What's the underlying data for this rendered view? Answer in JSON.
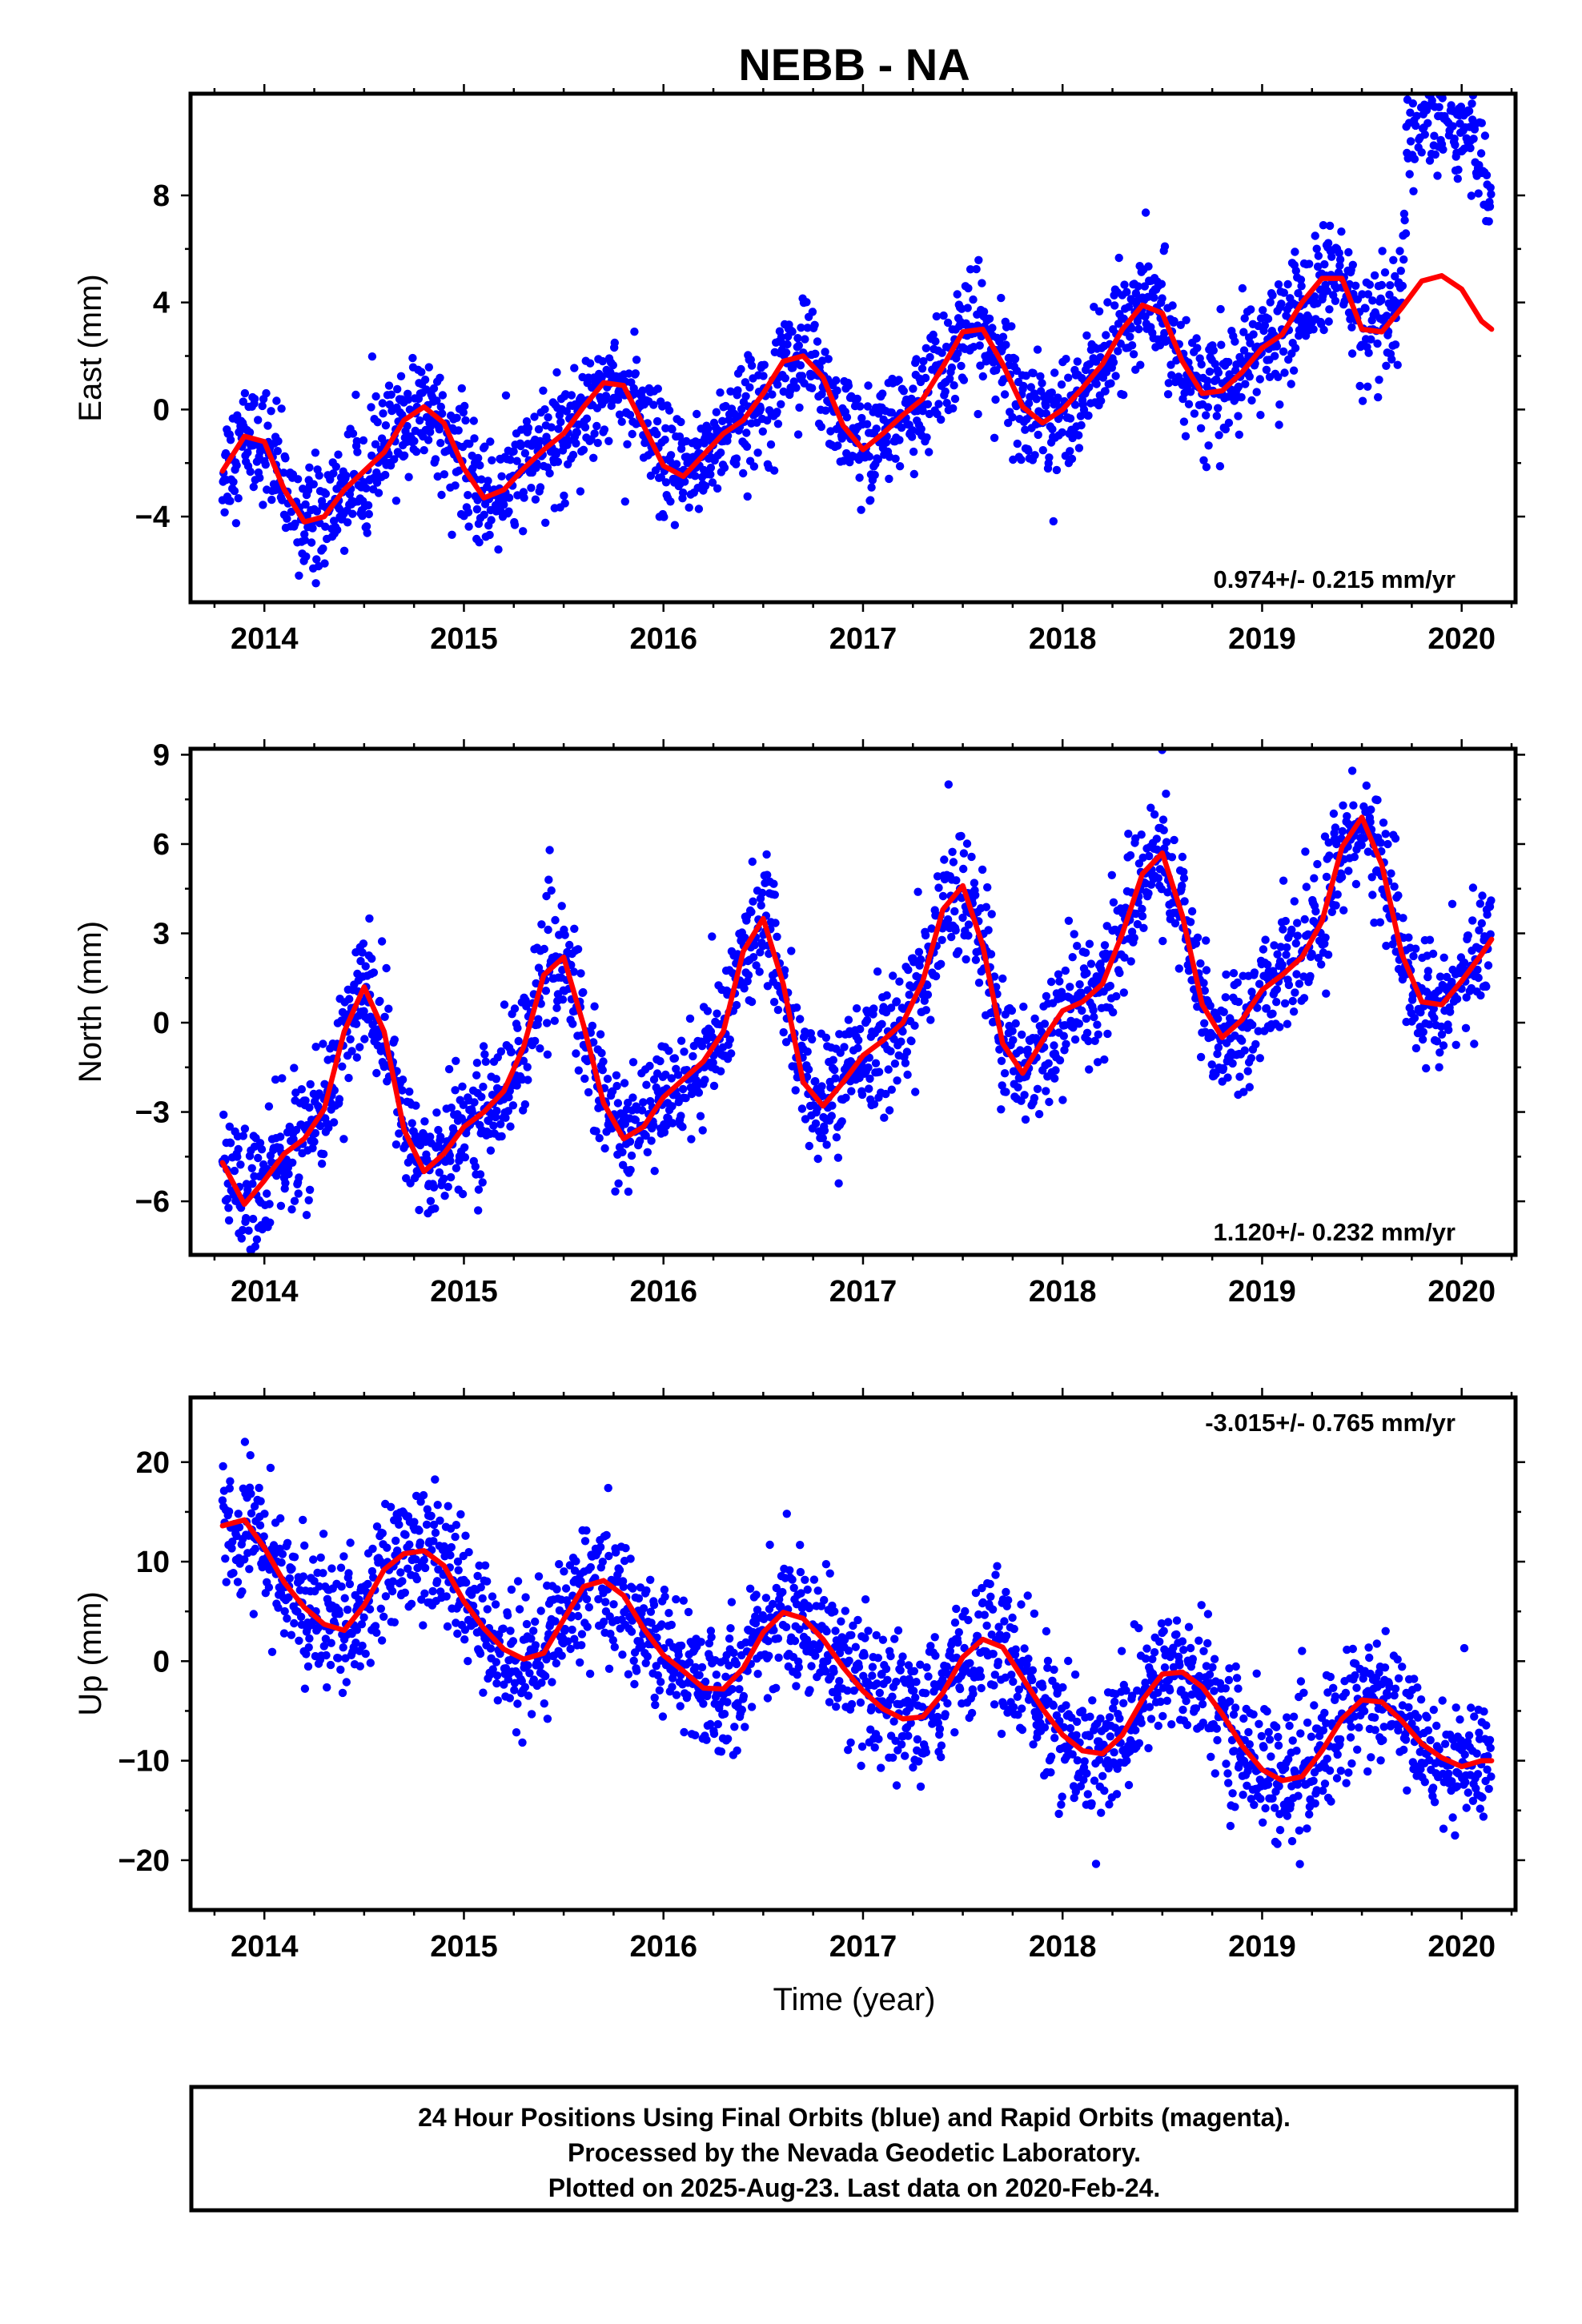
{
  "chart_data": {
    "type": "scatter",
    "title": "NEBB - NA",
    "xlabel": "Time (year)",
    "x_ticks": [
      "2014",
      "2015",
      "2016",
      "2017",
      "2018",
      "2019",
      "2020"
    ],
    "xlim": [
      2013.63,
      2020.27
    ],
    "point_color": "#0000ff",
    "model_color": "#ff0000",
    "panels": [
      {
        "name": "East",
        "ylabel": "East (mm)",
        "ylim": [
          -7.2,
          11.8
        ],
        "yticks": [
          -4,
          0,
          4,
          8
        ],
        "rate": "0.974+/- 0.215 mm/yr",
        "rate_position": "bottom-right",
        "model": {
          "x": [
            2013.79,
            2013.9,
            2014.0,
            2014.1,
            2014.2,
            2014.3,
            2014.4,
            2014.5,
            2014.6,
            2014.7,
            2014.8,
            2014.9,
            2015.0,
            2015.1,
            2015.2,
            2015.3,
            2015.4,
            2015.5,
            2015.6,
            2015.7,
            2015.8,
            2015.9,
            2016.0,
            2016.1,
            2016.2,
            2016.3,
            2016.4,
            2016.5,
            2016.6,
            2016.7,
            2016.8,
            2016.9,
            2017.0,
            2017.1,
            2017.2,
            2017.3,
            2017.4,
            2017.5,
            2017.6,
            2017.7,
            2017.8,
            2017.9,
            2018.0,
            2018.1,
            2018.2,
            2018.3,
            2018.4,
            2018.5,
            2018.6,
            2018.7,
            2018.8,
            2018.9,
            2019.0,
            2019.1,
            2019.2,
            2019.3,
            2019.4,
            2019.5,
            2019.6,
            2019.7,
            2019.8,
            2019.9,
            2020.0,
            2020.1,
            2020.15
          ],
          "y": [
            -2.3,
            -1.0,
            -1.2,
            -3.0,
            -4.2,
            -4.0,
            -3.0,
            -2.3,
            -1.6,
            -0.4,
            0.1,
            -0.5,
            -2.2,
            -3.3,
            -3.0,
            -2.2,
            -1.5,
            -0.9,
            0.1,
            1.0,
            0.9,
            -0.6,
            -2.1,
            -2.5,
            -1.7,
            -0.9,
            -0.4,
            0.6,
            1.8,
            2.0,
            1.2,
            -0.6,
            -1.5,
            -0.9,
            -0.2,
            0.4,
            1.6,
            2.9,
            3.0,
            1.7,
            0.1,
            -0.5,
            0.0,
            0.8,
            1.7,
            3.0,
            3.9,
            3.6,
            1.8,
            0.6,
            0.7,
            1.4,
            2.3,
            2.8,
            4.0,
            4.9,
            4.9,
            3.0,
            2.9,
            3.8,
            4.8,
            5.0,
            4.5,
            3.3,
            3.0
          ]
        },
        "trend": {
          "t0": 2013.79,
          "y0": -3.6,
          "rate": 0.974
        },
        "seasonal": {
          "annual_amp": 1.4,
          "annual_phase": 2.9,
          "semi_amp": 0.6,
          "semi_phase": 1.2
        },
        "scatter_sd": 1.05,
        "events": [
          {
            "start": 2019.7,
            "offset": 6.0
          }
        ]
      },
      {
        "name": "North",
        "ylabel": "North (mm)",
        "ylim": [
          -7.8,
          9.2
        ],
        "yticks": [
          -6,
          -3,
          0,
          3,
          6,
          9
        ],
        "rate": "1.120+/- 0.232 mm/yr",
        "rate_position": "bottom-right",
        "model": {
          "x": [
            2013.79,
            2013.9,
            2014.0,
            2014.1,
            2014.2,
            2014.3,
            2014.4,
            2014.5,
            2014.6,
            2014.7,
            2014.8,
            2014.9,
            2015.0,
            2015.1,
            2015.2,
            2015.3,
            2015.4,
            2015.5,
            2015.6,
            2015.7,
            2015.8,
            2015.9,
            2016.0,
            2016.1,
            2016.2,
            2016.3,
            2016.4,
            2016.5,
            2016.6,
            2016.7,
            2016.8,
            2016.9,
            2017.0,
            2017.1,
            2017.2,
            2017.3,
            2017.4,
            2017.5,
            2017.6,
            2017.7,
            2017.8,
            2017.9,
            2018.0,
            2018.1,
            2018.2,
            2018.3,
            2018.4,
            2018.5,
            2018.6,
            2018.7,
            2018.8,
            2018.9,
            2019.0,
            2019.1,
            2019.2,
            2019.3,
            2019.4,
            2019.5,
            2019.6,
            2019.7,
            2019.8,
            2019.9,
            2020.0,
            2020.1,
            2020.15
          ],
          "y": [
            -4.7,
            -6.1,
            -5.3,
            -4.4,
            -3.9,
            -2.9,
            -0.3,
            1.2,
            -0.3,
            -3.6,
            -5.0,
            -4.4,
            -3.5,
            -3.0,
            -2.3,
            -0.8,
            1.6,
            2.2,
            -0.1,
            -2.7,
            -3.9,
            -3.5,
            -2.5,
            -1.9,
            -1.3,
            -0.3,
            2.4,
            3.5,
            1.3,
            -2.0,
            -2.8,
            -2.0,
            -1.1,
            -0.6,
            0.0,
            1.4,
            3.8,
            4.6,
            2.6,
            -0.7,
            -1.7,
            -0.6,
            0.4,
            0.7,
            1.3,
            3.0,
            5.0,
            5.7,
            3.6,
            0.6,
            -0.5,
            0.1,
            1.1,
            1.6,
            2.2,
            3.4,
            5.9,
            6.9,
            5.3,
            2.3,
            0.7,
            0.6,
            1.4,
            2.3,
            2.8
          ]
        },
        "trend": {
          "t0": 2013.79,
          "y0": -4.6,
          "rate": 1.12
        },
        "seasonal": {
          "annual_amp": 2.4,
          "annual_phase": -1.6,
          "semi_amp": 1.0,
          "semi_phase": -0.5
        },
        "scatter_sd": 1.05,
        "events": []
      },
      {
        "name": "Up",
        "ylabel": "Up (mm)",
        "ylim": [
          -25.0,
          26.5
        ],
        "yticks": [
          -20,
          -10,
          0,
          10,
          20
        ],
        "rate": "-3.015+/- 0.765 mm/yr",
        "rate_position": "top-right",
        "model": {
          "x": [
            2013.79,
            2013.9,
            2014.0,
            2014.1,
            2014.2,
            2014.3,
            2014.4,
            2014.5,
            2014.6,
            2014.7,
            2014.8,
            2014.9,
            2015.0,
            2015.1,
            2015.2,
            2015.3,
            2015.4,
            2015.5,
            2015.6,
            2015.7,
            2015.8,
            2015.9,
            2016.0,
            2016.1,
            2016.2,
            2016.3,
            2016.4,
            2016.5,
            2016.6,
            2016.7,
            2016.8,
            2016.9,
            2017.0,
            2017.1,
            2017.2,
            2017.3,
            2017.4,
            2017.5,
            2017.6,
            2017.7,
            2017.8,
            2017.9,
            2018.0,
            2018.1,
            2018.2,
            2018.3,
            2018.4,
            2018.5,
            2018.6,
            2018.7,
            2018.8,
            2018.9,
            2019.0,
            2019.1,
            2019.2,
            2019.3,
            2019.4,
            2019.5,
            2019.6,
            2019.7,
            2019.8,
            2019.9,
            2020.0,
            2020.1,
            2020.15
          ],
          "y": [
            13.6,
            14.2,
            11.4,
            7.9,
            5.4,
            3.7,
            3.1,
            5.6,
            9.2,
            10.8,
            11.1,
            9.6,
            6.0,
            3.3,
            1.2,
            0.2,
            0.8,
            4.2,
            7.5,
            8.1,
            6.6,
            3.3,
            0.6,
            -1.0,
            -2.7,
            -2.8,
            -0.7,
            2.9,
            4.9,
            4.3,
            2.2,
            -0.6,
            -3.0,
            -4.8,
            -5.8,
            -5.6,
            -3.2,
            0.4,
            2.2,
            1.4,
            -1.7,
            -4.8,
            -7.4,
            -9.0,
            -9.3,
            -7.4,
            -3.9,
            -1.3,
            -1.1,
            -2.6,
            -5.3,
            -8.5,
            -10.9,
            -12.0,
            -11.6,
            -9.0,
            -5.8,
            -3.9,
            -4.1,
            -6.0,
            -8.3,
            -9.7,
            -10.6,
            -10.0,
            -10.0
          ]
        },
        "trend": {
          "t0": 2013.79,
          "y0": 9.0,
          "rate": -3.015
        },
        "seasonal": {
          "annual_amp": 4.8,
          "annual_phase": 1.4,
          "semi_amp": 1.0,
          "semi_phase": 0.5
        },
        "scatter_sd": 3.3,
        "events": []
      }
    ]
  },
  "caption": {
    "line1": "24 Hour Positions Using Final Orbits (blue) and Rapid Orbits (magenta).",
    "line2": "Processed by the Nevada Geodetic Laboratory.",
    "line3": "Plotted on 2025-Aug-23. Last data on 2020-Feb-24."
  }
}
